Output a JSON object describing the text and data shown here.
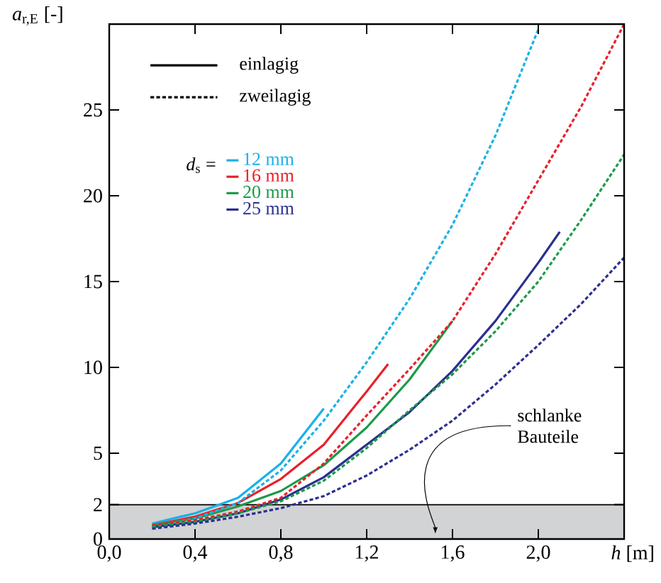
{
  "chart_data": {
    "type": "line",
    "xlabel": "*h* [m]",
    "ylabel": "*a*$_{r,E}$ [-]",
    "xlim": [
      0,
      2.4
    ],
    "ylim": [
      0,
      30
    ],
    "xticks": [
      {
        "value": 0,
        "label": "0,0"
      },
      {
        "value": 0.4,
        "label": "0,4"
      },
      {
        "value": 0.8,
        "label": "0,8"
      },
      {
        "value": 1.2,
        "label": "1,2"
      },
      {
        "value": 1.6,
        "label": "1,6"
      },
      {
        "value": 2.0,
        "label": "2,0"
      }
    ],
    "yticks": [
      0,
      2,
      5,
      10,
      15,
      20,
      25
    ],
    "legend": "top left",
    "legend_title": "*d*$_{s}$ =",
    "annotations": [
      "einlagig",
      "zweilagig"
    ],
    "bands": [
      {
        "axis": "y",
        "from": 0,
        "to": 2,
        "label": "schlanke Bauteile",
        "color": "#d1d3d4"
      }
    ],
    "series": [
      {
        "name": "12 mm",
        "color": "#1ab0e8",
        "line_style": "solid",
        "x": [
          0.2,
          0.4,
          0.6,
          0.8,
          1.0
        ],
        "values": [
          0.9,
          1.5,
          2.4,
          4.4,
          7.6
        ]
      },
      {
        "name": "16 mm",
        "color": "#e8202a",
        "line_style": "solid",
        "x": [
          0.2,
          0.4,
          0.6,
          0.8,
          1.0,
          1.2,
          1.3
        ],
        "values": [
          0.8,
          1.3,
          2.1,
          3.5,
          5.5,
          8.6,
          10.2
        ]
      },
      {
        "name": "20 mm",
        "color": "#1a9a48",
        "line_style": "solid",
        "x": [
          0.2,
          0.4,
          0.6,
          0.8,
          1.0,
          1.2,
          1.4,
          1.6
        ],
        "values": [
          0.8,
          1.2,
          1.9,
          2.8,
          4.3,
          6.5,
          9.3,
          12.7
        ]
      },
      {
        "name": "25 mm",
        "color": "#2b2f8f",
        "line_style": "solid",
        "x": [
          0.2,
          0.4,
          0.6,
          0.8,
          1.0,
          1.2,
          1.4,
          1.6,
          1.8,
          2.0,
          2.1
        ],
        "values": [
          0.7,
          1.0,
          1.5,
          2.3,
          3.6,
          5.5,
          7.4,
          9.8,
          12.7,
          16.1,
          17.9
        ]
      },
      {
        "color": "#1ab0e8",
        "line_style": "dashed",
        "x": [
          0.2,
          0.4,
          0.6,
          0.8,
          1.0,
          1.2,
          1.4,
          1.6,
          1.8,
          2.0
        ],
        "values": [
          0.7,
          1.2,
          2.1,
          4.0,
          6.9,
          10.3,
          14.0,
          18.3,
          23.5,
          29.7
        ]
      },
      {
        "color": "#e8202a",
        "line_style": "dashed",
        "x": [
          0.2,
          0.4,
          0.6,
          0.8,
          1.0,
          1.2,
          1.4,
          1.6,
          1.8,
          2.0,
          2.2,
          2.4
        ],
        "values": [
          0.8,
          1.1,
          1.6,
          2.4,
          4.4,
          7.2,
          9.9,
          12.7,
          16.6,
          20.9,
          25.2,
          30.0
        ]
      },
      {
        "color": "#1a9a48",
        "line_style": "dashed",
        "x": [
          0.2,
          0.4,
          0.6,
          0.8,
          1.0,
          1.2,
          1.4,
          1.6,
          1.8,
          2.0,
          2.2,
          2.4
        ],
        "values": [
          0.7,
          1.0,
          1.5,
          2.2,
          3.4,
          5.3,
          7.5,
          9.6,
          12.1,
          15.0,
          18.6,
          22.4
        ]
      },
      {
        "color": "#2b2f8f",
        "line_style": "dashed",
        "x": [
          0.2,
          0.4,
          0.6,
          0.8,
          1.0,
          1.2,
          1.4,
          1.6,
          1.8,
          2.0,
          2.2,
          2.4
        ],
        "values": [
          0.6,
          0.9,
          1.3,
          1.8,
          2.5,
          3.7,
          5.2,
          6.9,
          9.0,
          11.3,
          13.7,
          16.4
        ]
      }
    ]
  }
}
